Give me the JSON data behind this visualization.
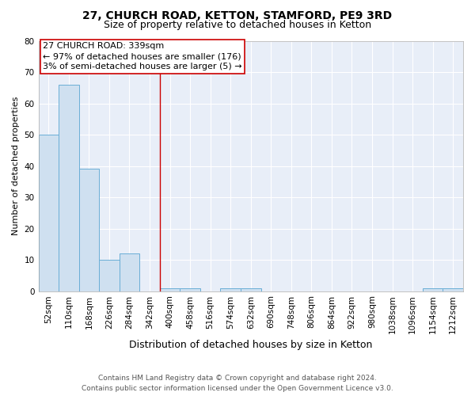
{
  "title": "27, CHURCH ROAD, KETTON, STAMFORD, PE9 3RD",
  "subtitle": "Size of property relative to detached houses in Ketton",
  "xlabel": "Distribution of detached houses by size in Ketton",
  "ylabel": "Number of detached properties",
  "categories": [
    "52sqm",
    "110sqm",
    "168sqm",
    "226sqm",
    "284sqm",
    "342sqm",
    "400sqm",
    "458sqm",
    "516sqm",
    "574sqm",
    "632sqm",
    "690sqm",
    "748sqm",
    "806sqm",
    "864sqm",
    "922sqm",
    "980sqm",
    "1038sqm",
    "1096sqm",
    "1154sqm",
    "1212sqm"
  ],
  "values": [
    50,
    66,
    39,
    10,
    12,
    0,
    1,
    1,
    0,
    1,
    1,
    0,
    0,
    0,
    0,
    0,
    0,
    0,
    0,
    1,
    1
  ],
  "bar_color": "#cfe0f0",
  "bar_edge_color": "#6aaed6",
  "ylim": [
    0,
    80
  ],
  "yticks": [
    0,
    10,
    20,
    30,
    40,
    50,
    60,
    70,
    80
  ],
  "annotation_text": "27 CHURCH ROAD: 339sqm\n← 97% of detached houses are smaller (176)\n3% of semi-detached houses are larger (5) →",
  "vline_index": 5,
  "vline_color": "#cc0000",
  "footer_line1": "Contains HM Land Registry data © Crown copyright and database right 2024.",
  "footer_line2": "Contains public sector information licensed under the Open Government Licence v3.0.",
  "bg_color": "#ffffff",
  "plot_bg_color": "#e8eef8",
  "grid_color": "#ffffff",
  "title_fontsize": 10,
  "subtitle_fontsize": 9,
  "xlabel_fontsize": 9,
  "ylabel_fontsize": 8,
  "tick_fontsize": 7.5,
  "annotation_fontsize": 8,
  "footer_fontsize": 6.5
}
